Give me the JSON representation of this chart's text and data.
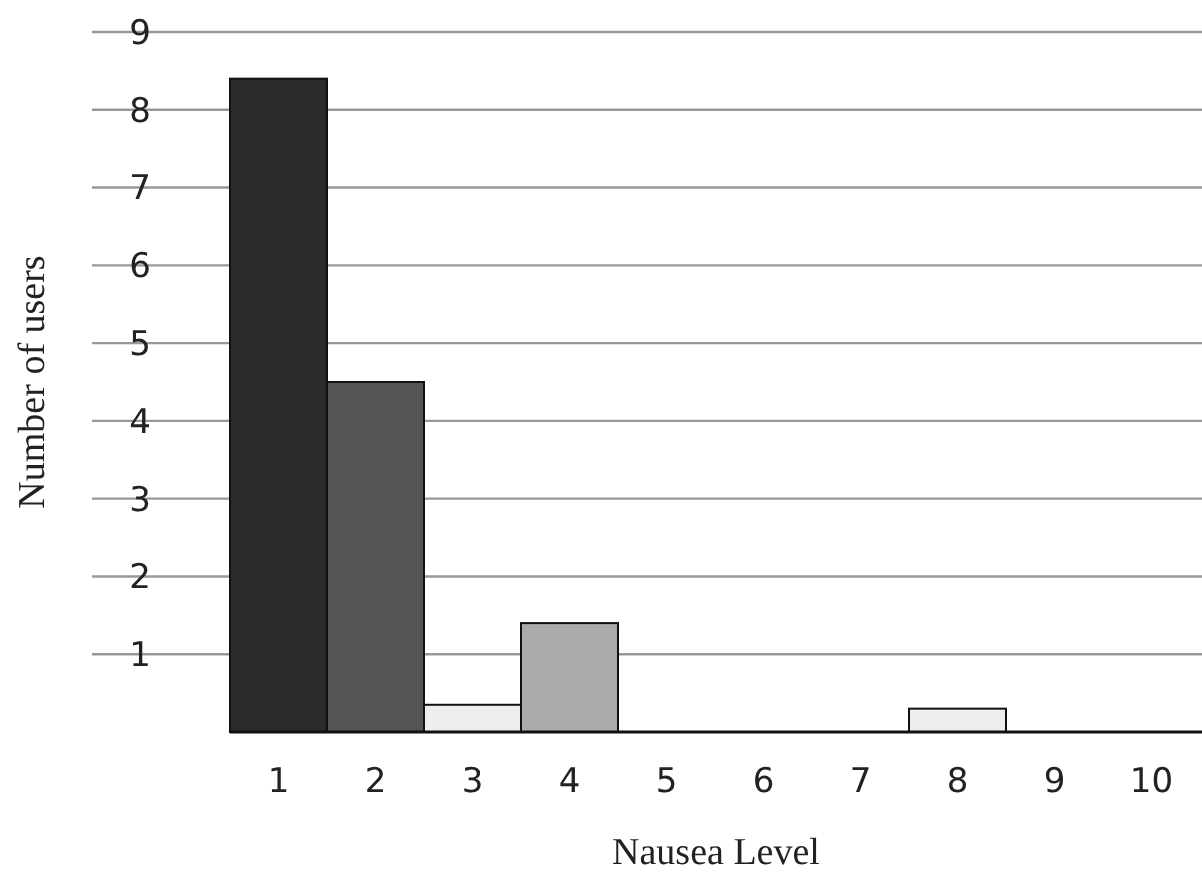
{
  "chart_data": {
    "type": "bar",
    "xlabel": "Nausea Level",
    "ylabel": "Number of users",
    "categories": [
      "1",
      "2",
      "3",
      "4",
      "5",
      "6",
      "7",
      "8",
      "9",
      "10"
    ],
    "values": [
      8.4,
      4.5,
      0.35,
      1.4,
      0,
      0,
      0,
      0.3,
      0,
      0
    ],
    "colors": [
      "#2b2b2b",
      "#555555",
      "#eeeeee",
      "#aaaaaa",
      "#eeeeee",
      "#eeeeee",
      "#eeeeee",
      "#eeeeee",
      "#eeeeee",
      "#eeeeee"
    ],
    "ylim": [
      0,
      9
    ],
    "yticks": [
      1,
      2,
      3,
      4,
      5,
      6,
      7,
      8,
      9
    ],
    "grid": "y"
  }
}
